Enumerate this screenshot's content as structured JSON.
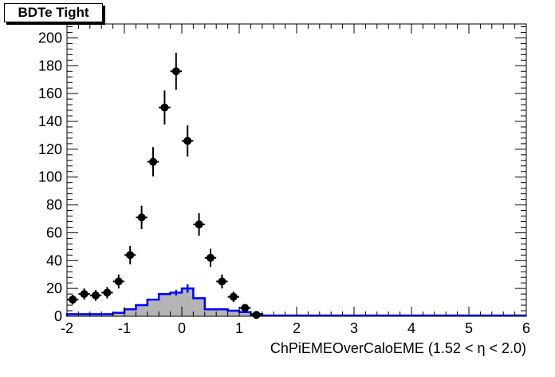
{
  "chart_data": {
    "type": "bar",
    "title": "BDTe Tight",
    "xlabel": "ChPiEMEOverCaloEME (1.52 <   η < 2.0)",
    "ylabel": "",
    "xlim": [
      -2,
      6
    ],
    "ylim": [
      0,
      210
    ],
    "x_ticks": [
      "-2",
      "-1",
      "0",
      "1",
      "2",
      "3",
      "4",
      "5",
      "6"
    ],
    "y_ticks": [
      "0",
      "20",
      "40",
      "60",
      "80",
      "100",
      "120",
      "140",
      "160",
      "180",
      "200"
    ],
    "grid": false,
    "legend": "none",
    "bin_width": 0.2,
    "series": [
      {
        "style": "points-with-errors",
        "color": "#000000",
        "x": [
          -1.9,
          -1.7,
          -1.5,
          -1.3,
          -1.1,
          -0.9,
          -0.7,
          -0.5,
          -0.3,
          -0.1,
          0.1,
          0.3,
          0.5,
          0.7,
          0.9,
          1.1,
          1.3
        ],
        "y": [
          12,
          16,
          15,
          17,
          25,
          44,
          71,
          111,
          150,
          176,
          126,
          66,
          42,
          25,
          14,
          6,
          1
        ],
        "err": [
          3.5,
          4,
          3.9,
          4.1,
          5,
          6.6,
          8.4,
          10.5,
          12.2,
          13.3,
          11.2,
          8.1,
          6.5,
          5,
          3.7,
          2.4,
          1
        ]
      },
      {
        "style": "step-filled",
        "color": "#0000ff",
        "fill": "#b4b4b4",
        "x": [
          -1.9,
          -1.7,
          -1.5,
          -1.3,
          -1.1,
          -0.9,
          -0.7,
          -0.5,
          -0.3,
          -0.1,
          0.1,
          0.3,
          0.5,
          0.7,
          0.9,
          1.1,
          1.3
        ],
        "y": [
          1.5,
          1.5,
          1.5,
          1.5,
          2.5,
          5,
          8,
          12,
          16,
          17,
          20,
          13,
          5,
          5,
          4,
          3,
          1.5
        ],
        "err": [
          0,
          0,
          0,
          0,
          0,
          0,
          0,
          0,
          0,
          2,
          3,
          0,
          0,
          0,
          0,
          0,
          0
        ]
      }
    ]
  }
}
